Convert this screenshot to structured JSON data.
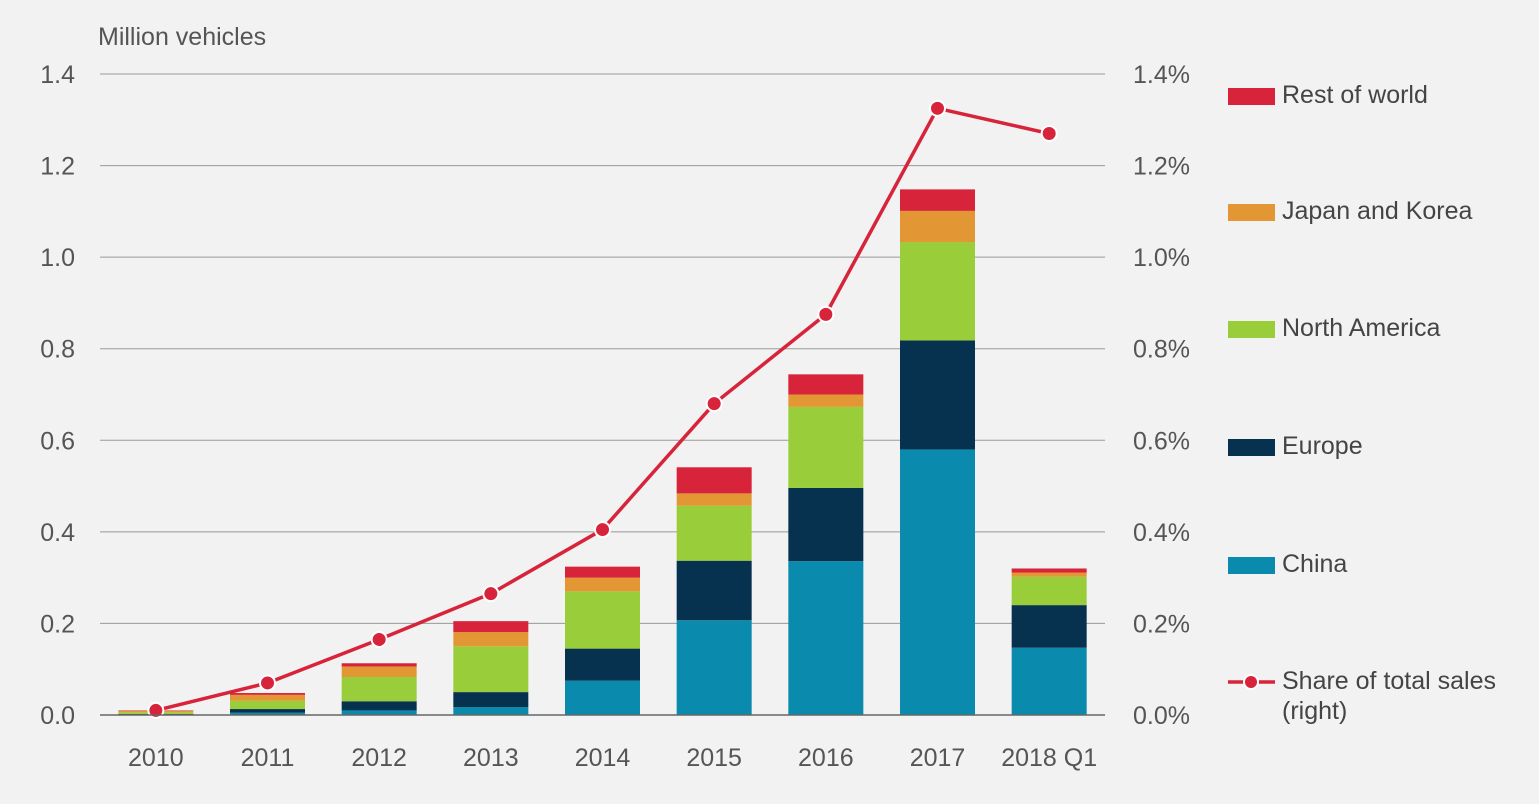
{
  "chart_data": {
    "type": "bar",
    "stacked": true,
    "ylabel": "Million vehicles",
    "categories": [
      "2010",
      "2011",
      "2012",
      "2013",
      "2014",
      "2015",
      "2016",
      "2017",
      "2018 Q1"
    ],
    "ylim": [
      0,
      1.4
    ],
    "y_ticks": [
      "0.0",
      "0.2",
      "0.4",
      "0.6",
      "0.8",
      "1.0",
      "1.2",
      "1.4"
    ],
    "y2lim": [
      0,
      1.4
    ],
    "y2_ticks": [
      "0.0%",
      "0.2%",
      "0.4%",
      "0.6%",
      "0.8%",
      "1.0%",
      "1.2%",
      "1.4%"
    ],
    "grid": true,
    "legend_position": "right",
    "series": [
      {
        "name": "China",
        "color": "#0a8aac",
        "values": [
          0.0,
          0.005,
          0.01,
          0.017,
          0.075,
          0.207,
          0.336,
          0.58,
          0.147
        ]
      },
      {
        "name": "Europe",
        "color": "#063250",
        "values": [
          0.002,
          0.008,
          0.02,
          0.033,
          0.07,
          0.13,
          0.16,
          0.238,
          0.093
        ]
      },
      {
        "name": "North America",
        "color": "#9acd3a",
        "values": [
          0.004,
          0.018,
          0.053,
          0.1,
          0.125,
          0.12,
          0.177,
          0.215,
          0.062
        ]
      },
      {
        "name": "Japan and Korea",
        "color": "#e39734",
        "values": [
          0.003,
          0.013,
          0.023,
          0.031,
          0.03,
          0.027,
          0.027,
          0.068,
          0.009
        ]
      },
      {
        "name": "Rest of world",
        "color": "#d7243a",
        "values": [
          0.001,
          0.004,
          0.007,
          0.024,
          0.024,
          0.057,
          0.044,
          0.047,
          0.009
        ]
      }
    ],
    "line_series": {
      "name": "Share of total sales (right)",
      "axis": "right",
      "color": "#d7243a",
      "values": [
        0.01,
        0.07,
        0.165,
        0.265,
        0.405,
        0.68,
        0.875,
        1.325,
        1.27
      ]
    },
    "legend": [
      {
        "label": "Rest of world",
        "color": "#d7243a",
        "kind": "swatch"
      },
      {
        "label": "Japan and Korea",
        "color": "#e39734",
        "kind": "swatch"
      },
      {
        "label": "North America",
        "color": "#9acd3a",
        "kind": "swatch"
      },
      {
        "label": "Europe",
        "color": "#063250",
        "kind": "swatch"
      },
      {
        "label": "China",
        "color": "#0a8aac",
        "kind": "swatch"
      },
      {
        "label": "Share of total sales (right)",
        "color": "#d7243a",
        "kind": "line"
      }
    ]
  }
}
